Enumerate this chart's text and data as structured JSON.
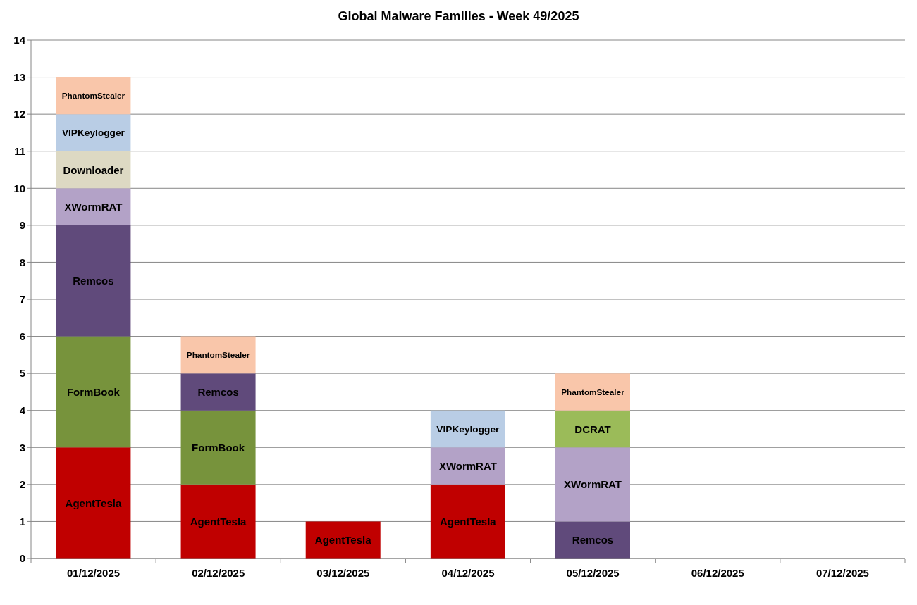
{
  "chart_data": {
    "type": "bar",
    "title": "Global Malware Families - Week 49/2025",
    "categories": [
      "01/12/2025",
      "02/12/2025",
      "03/12/2025",
      "04/12/2025",
      "05/12/2025",
      "06/12/2025",
      "07/12/2025"
    ],
    "series": [
      {
        "name": "AgentTesla",
        "color": "#c00000",
        "values": [
          3,
          2,
          1,
          2,
          null,
          null,
          null
        ]
      },
      {
        "name": "FormBook",
        "color": "#77933c",
        "values": [
          3,
          2,
          null,
          null,
          null,
          null,
          null
        ]
      },
      {
        "name": "Remcos",
        "color": "#604a7b",
        "values": [
          3,
          1,
          null,
          null,
          1,
          null,
          null
        ]
      },
      {
        "name": "XWormRAT",
        "color": "#b3a2c7",
        "values": [
          1,
          null,
          null,
          1,
          2,
          null,
          null
        ]
      },
      {
        "name": "Downloader",
        "color": "#ddd9c3",
        "values": [
          1,
          null,
          null,
          null,
          null,
          null,
          null
        ]
      },
      {
        "name": "VIPKeylogger",
        "color": "#b9cde5",
        "values": [
          1,
          null,
          null,
          1,
          null,
          null,
          null
        ]
      },
      {
        "name": "DCRAT",
        "color": "#9bbb59",
        "values": [
          null,
          null,
          null,
          null,
          1,
          null,
          null
        ]
      },
      {
        "name": "PhantomStealer",
        "color": "#f9c6aa",
        "values": [
          1,
          1,
          null,
          null,
          1,
          null,
          null
        ]
      }
    ],
    "stacked": true,
    "ylim": [
      0,
      14
    ],
    "yticks": [
      0,
      1,
      2,
      3,
      4,
      5,
      6,
      7,
      8,
      9,
      10,
      11,
      12,
      13,
      14
    ],
    "grid": "y"
  }
}
